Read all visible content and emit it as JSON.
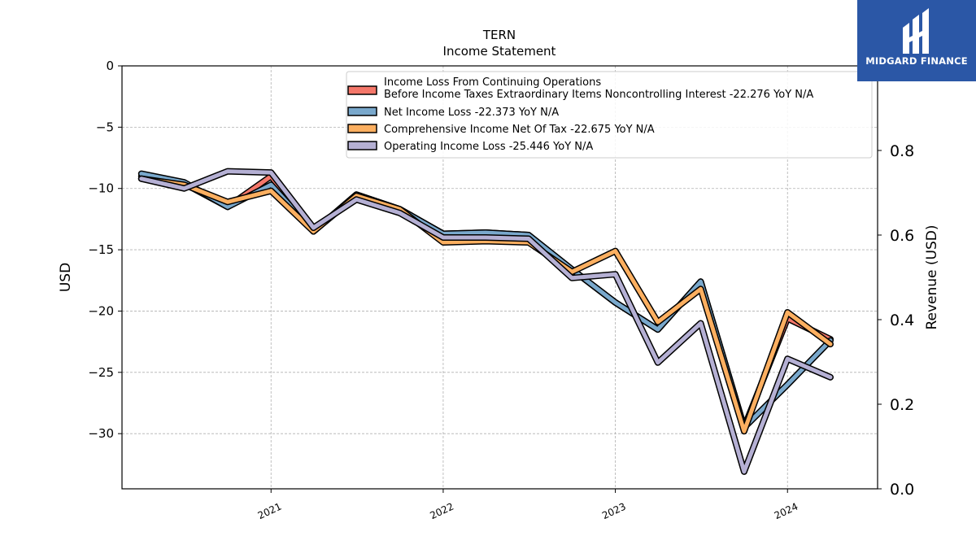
{
  "brand": {
    "name": "MIDGARD FINANCE"
  },
  "chart_data": {
    "type": "line",
    "title": "TERN",
    "subtitle": "Income Statement",
    "ylabel": "USD",
    "y2label": "Revenue (USD)",
    "ylim": [
      -34.5,
      0
    ],
    "y2lim": [
      0,
      1.0
    ],
    "yticks": [
      0,
      -5,
      -10,
      -15,
      -20,
      -25,
      -30
    ],
    "ytick_labels": [
      "0",
      "−5",
      "−10",
      "−15",
      "−20",
      "−25",
      "−30"
    ],
    "y2ticks": [
      0.0,
      0.2,
      0.4,
      0.6,
      0.8
    ],
    "y2tick_labels": [
      "0.0",
      "0.2",
      "0.4",
      "0.6",
      "0.8"
    ],
    "xlim": [
      "2020-02-20",
      "2024-07-10"
    ],
    "xticks": [
      "2021-01-01",
      "2022-01-01",
      "2023-01-01",
      "2024-01-01"
    ],
    "xtick_labels": [
      "2021",
      "2022",
      "2023",
      "2024"
    ],
    "grid": true,
    "legend_position": "top-right",
    "x": [
      "2020-04-01",
      "2020-07-01",
      "2020-10-01",
      "2021-01-01",
      "2021-04-01",
      "2021-07-01",
      "2021-10-01",
      "2022-01-01",
      "2022-04-01",
      "2022-07-01",
      "2022-10-01",
      "2023-01-01",
      "2023-04-01",
      "2023-07-01",
      "2023-10-01",
      "2024-01-01",
      "2024-04-01"
    ],
    "series": [
      {
        "name": "Income Loss From Continuing Operations Before Income Taxes Extraordinary Items Noncontrolling Interest",
        "legend_lines": [
          "Income Loss From Continuing Operations",
          "Before Income Taxes Extraordinary Items Noncontrolling Interest  -22.276 YoY N/A"
        ],
        "color": "#f4776a",
        "values": [
          -9.0,
          -9.6,
          -11.5,
          -9.0,
          -13.5,
          -10.5,
          -11.7,
          -13.7,
          -13.6,
          -13.8,
          -16.6,
          -19.3,
          -21.5,
          -17.6,
          -29.5,
          -20.6,
          -22.3
        ]
      },
      {
        "name": "Net Income Loss",
        "legend_lines": [
          "Net Income Loss  -22.373 YoY N/A"
        ],
        "color": "#79a8cc",
        "values": [
          -8.8,
          -9.5,
          -11.5,
          -9.7,
          -13.5,
          -10.5,
          -11.7,
          -13.7,
          -13.6,
          -13.8,
          -16.6,
          -19.3,
          -21.5,
          -17.6,
          -29.5,
          -26.0,
          -22.4
        ]
      },
      {
        "name": "Comprehensive Income Net Of Tax",
        "legend_lines": [
          "Comprehensive Income Net Of Tax  -22.675 YoY N/A"
        ],
        "color": "#fcaf60",
        "values": [
          -9.2,
          -9.7,
          -11.1,
          -10.2,
          -13.5,
          -10.6,
          -11.7,
          -14.4,
          -14.3,
          -14.4,
          -16.8,
          -15.1,
          -20.9,
          -18.2,
          -29.8,
          -20.1,
          -22.7
        ]
      },
      {
        "name": "Operating Income Loss",
        "legend_lines": [
          "Operating Income Loss  -25.446 YoY N/A"
        ],
        "color": "#b5b0d4",
        "values": [
          -9.2,
          -10.0,
          -8.6,
          -8.7,
          -13.2,
          -10.9,
          -12.0,
          -14.0,
          -14.0,
          -14.1,
          -17.3,
          -17.0,
          -24.2,
          -21.0,
          -33.1,
          -23.9,
          -25.4
        ]
      }
    ]
  }
}
